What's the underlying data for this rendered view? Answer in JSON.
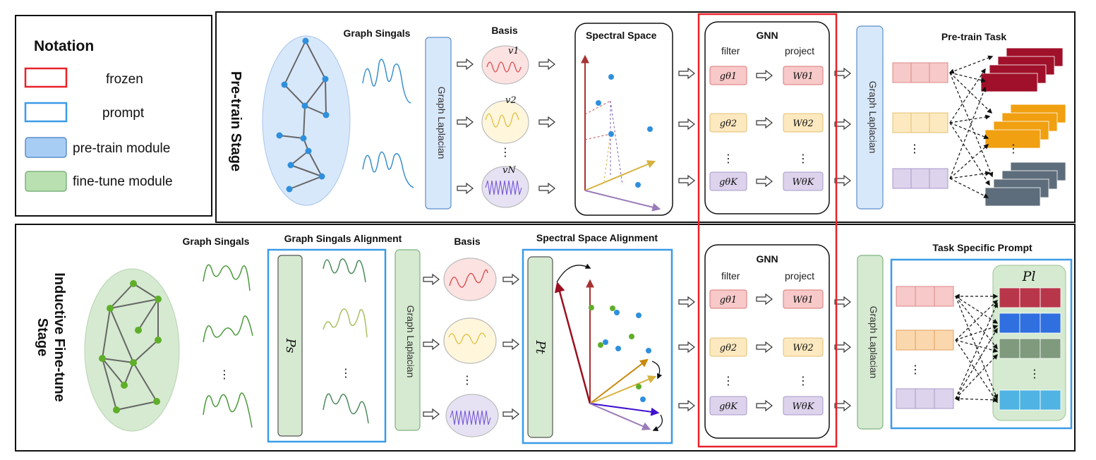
{
  "notation": {
    "title": "Notation",
    "items": [
      {
        "label": "frozen",
        "stroke": "#e8222a",
        "fill": "#ffffff"
      },
      {
        "label": "prompt",
        "stroke": "#3b9be8",
        "fill": "#ffffff"
      },
      {
        "label": "pre-train module",
        "stroke": "#5b8fc9",
        "fill": "#a8cdf5"
      },
      {
        "label": "fine-tune module",
        "stroke": "#7fb27f",
        "fill": "#b9e0b0"
      }
    ]
  },
  "pretrain": {
    "stage_label": "Pre-train Stage",
    "graph_signals": "Graph Singals",
    "basis": "Basis",
    "basis_labels": [
      "v1",
      "v2",
      "vN"
    ],
    "laplacian": "Graph Laplacian",
    "spectral_space": "Spectral Space",
    "gnn": {
      "title": "GNN",
      "filter": "filter",
      "project": "project",
      "filters": [
        "gθ1",
        "gθ2",
        "gθK"
      ],
      "projects": [
        "Wθ1",
        "Wθ2",
        "WθK"
      ]
    },
    "laplacian2": "Graph Laplacian",
    "task": "Pre-train Task"
  },
  "finetune": {
    "stage_label_1": "Inductive Fine-tune",
    "stage_label_2": "Stage",
    "graph_signals": "Graph Singals",
    "alignment": "Graph Singals Alignment",
    "ps": "Ps",
    "laplacian": "Graph Laplacian",
    "basis": "Basis",
    "spectral_alignment": "Spectral Space Alignment",
    "pt": "Pt",
    "gnn": {
      "title": "GNN",
      "filter": "filter",
      "project": "project",
      "filters": [
        "gθ1",
        "gθ2",
        "gθK"
      ],
      "projects": [
        "Wθ1",
        "Wθ2",
        "WθK"
      ]
    },
    "laplacian2": "Graph Laplacian",
    "prompt_title": "Task Specific Prompt",
    "pl": "Pl"
  },
  "colors": {
    "frozen": "#e8222a",
    "prompt": "#3b9be8",
    "pretrain_fill": "#d8e8fb",
    "finetune_fill": "#d5ead0",
    "row1": "#f7c9c9",
    "row2": "#fde9c0",
    "row3": "#ddd3ec",
    "tri1": "#a0102a",
    "tri2": "#f0a010",
    "tri3": "#5e6d7c"
  },
  "icons": [
    "right-arrow-icon",
    "graph-icon",
    "signal-wave-icon",
    "axis-arrow-icon"
  ]
}
